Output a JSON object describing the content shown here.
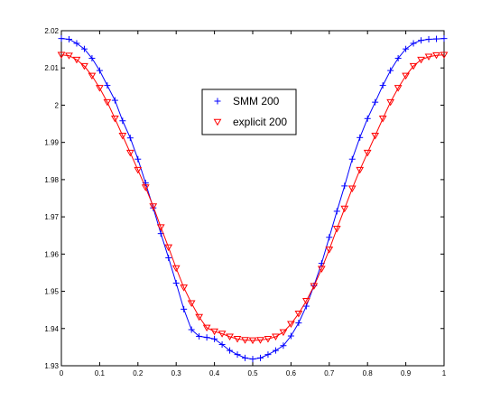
{
  "chart_data": {
    "type": "line",
    "title": "",
    "xlabel": "",
    "ylabel": "",
    "xlim": [
      0,
      1
    ],
    "ylim": [
      1.93,
      2.02
    ],
    "x_ticks": [
      "0",
      "0.1",
      "0.2",
      "0.3",
      "0.4",
      "0.5",
      "0.6",
      "0.7",
      "0.8",
      "0.9",
      "1"
    ],
    "y_ticks": [
      "1.93",
      "1.94",
      "1.95",
      "1.96",
      "1.97",
      "1.98",
      "1.99",
      "2",
      "2.01",
      "2.02"
    ],
    "grid": false,
    "legend_position": "upper-center",
    "series": [
      {
        "name": "SMM 200",
        "color": "#0000ff",
        "marker": "plus",
        "x": [
          0,
          0.02,
          0.04,
          0.06,
          0.08,
          0.1,
          0.12,
          0.14,
          0.16,
          0.18,
          0.2,
          0.22,
          0.24,
          0.26,
          0.28,
          0.3,
          0.32,
          0.34,
          0.36,
          0.38,
          0.4,
          0.42,
          0.44,
          0.46,
          0.48,
          0.5,
          0.52,
          0.54,
          0.56,
          0.58,
          0.6,
          0.62,
          0.64,
          0.66,
          0.68,
          0.7,
          0.72,
          0.74,
          0.76,
          0.78,
          0.8,
          0.82,
          0.84,
          0.86,
          0.88,
          0.9,
          0.92,
          0.94,
          0.96,
          0.98,
          1
        ],
        "y": [
          2.0179,
          2.0177,
          2.0166,
          2.0151,
          2.0126,
          2.0093,
          2.0053,
          2.0013,
          1.9958,
          1.9912,
          1.9855,
          1.9791,
          1.9724,
          1.9655,
          1.959,
          1.9522,
          1.9452,
          1.9397,
          1.9379,
          1.9376,
          1.9372,
          1.9357,
          1.9341,
          1.933,
          1.9321,
          1.9318,
          1.9321,
          1.933,
          1.9341,
          1.9354,
          1.938,
          1.9415,
          1.946,
          1.9515,
          1.9575,
          1.9645,
          1.9715,
          1.9783,
          1.9855,
          1.9913,
          1.9964,
          2.0008,
          2.0053,
          2.0093,
          2.0126,
          2.0151,
          2.0166,
          2.0174,
          2.0177,
          2.0178,
          2.0179
        ]
      },
      {
        "name": "explicit 200",
        "color": "#ff0000",
        "marker": "triangle-down",
        "x": [
          0,
          0.02,
          0.04,
          0.06,
          0.08,
          0.1,
          0.12,
          0.14,
          0.16,
          0.18,
          0.2,
          0.22,
          0.24,
          0.26,
          0.28,
          0.3,
          0.32,
          0.34,
          0.36,
          0.38,
          0.4,
          0.42,
          0.44,
          0.46,
          0.48,
          0.5,
          0.52,
          0.54,
          0.56,
          0.58,
          0.6,
          0.62,
          0.64,
          0.66,
          0.68,
          0.7,
          0.72,
          0.74,
          0.76,
          0.78,
          0.8,
          0.82,
          0.84,
          0.86,
          0.88,
          0.9,
          0.92,
          0.94,
          0.96,
          0.98,
          1
        ],
        "y": [
          2.0135,
          2.0133,
          2.0122,
          2.0105,
          2.0079,
          2.0046,
          2.0008,
          1.9964,
          1.9918,
          1.9872,
          1.9826,
          1.9779,
          1.9728,
          1.9672,
          1.9618,
          1.9562,
          1.951,
          1.9468,
          1.9431,
          1.9402,
          1.9392,
          1.9386,
          1.9378,
          1.9372,
          1.9369,
          1.9368,
          1.9369,
          1.9372,
          1.9378,
          1.939,
          1.9412,
          1.944,
          1.9474,
          1.9514,
          1.956,
          1.9612,
          1.9668,
          1.9722,
          1.9776,
          1.9826,
          1.9872,
          1.9918,
          1.9964,
          2.0008,
          2.0046,
          2.0079,
          2.0105,
          2.0122,
          2.013,
          2.0134,
          2.0135
        ]
      }
    ]
  }
}
